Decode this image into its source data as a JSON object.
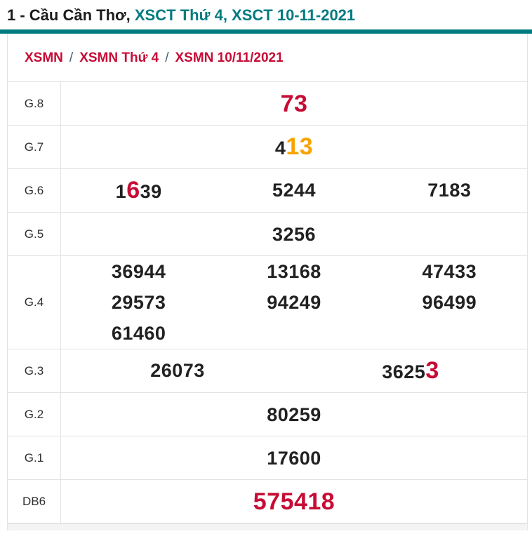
{
  "header": {
    "title_black": "1 - Cầu Cần Thơ,",
    "title_teal": " XSCT Thứ 4, XSCT 10-11-2021"
  },
  "breadcrumb": {
    "separator": "/",
    "items": [
      "XSMN",
      "XSMN Thứ 4",
      "XSMN 10/11/2021"
    ]
  },
  "colors": {
    "accent_teal": "#007b80",
    "highlight_red": "#c60c35",
    "highlight_orange": "#f7a400",
    "number_black": "#212121",
    "breadcrumb_red": "#c60c35",
    "separator_blue": "#3f6277",
    "border_gray": "#e2e2e2"
  },
  "results": {
    "rows": [
      {
        "label": "G.8",
        "cols": 1,
        "lines": [
          [
            [
              {
                "t": "73",
                "hl": "red"
              }
            ]
          ]
        ]
      },
      {
        "label": "G.7",
        "cols": 1,
        "lines": [
          [
            [
              {
                "t": "4"
              },
              {
                "t": "13",
                "hl": "orange"
              }
            ]
          ]
        ]
      },
      {
        "label": "G.6",
        "cols": 3,
        "lines": [
          [
            [
              {
                "t": "1"
              },
              {
                "t": "6",
                "hl": "red"
              },
              {
                "t": "39"
              }
            ],
            [
              {
                "t": "5244"
              }
            ],
            [
              {
                "t": "7183"
              }
            ]
          ]
        ]
      },
      {
        "label": "G.5",
        "cols": 1,
        "lines": [
          [
            [
              {
                "t": "3256"
              }
            ]
          ]
        ]
      },
      {
        "label": "G.4",
        "cols": 3,
        "lines": [
          [
            [
              {
                "t": "36944"
              }
            ],
            [
              {
                "t": "13168"
              }
            ],
            [
              {
                "t": "47433"
              }
            ]
          ],
          [
            [
              {
                "t": "29573"
              }
            ],
            [
              {
                "t": "94249"
              }
            ],
            [
              {
                "t": "96499"
              }
            ]
          ],
          [
            [
              {
                "t": "61460"
              }
            ]
          ]
        ]
      },
      {
        "label": "G.3",
        "cols": 2,
        "lines": [
          [
            [
              {
                "t": "26073"
              }
            ],
            [
              {
                "t": "3625"
              },
              {
                "t": "3",
                "hl": "red"
              }
            ]
          ]
        ]
      },
      {
        "label": "G.2",
        "cols": 1,
        "lines": [
          [
            [
              {
                "t": "80259"
              }
            ]
          ]
        ]
      },
      {
        "label": "G.1",
        "cols": 1,
        "lines": [
          [
            [
              {
                "t": "17600"
              }
            ]
          ]
        ]
      },
      {
        "label": "DB6",
        "cols": 1,
        "lines": [
          [
            [
              {
                "t": "575418",
                "hl": "red"
              }
            ]
          ]
        ]
      }
    ]
  }
}
